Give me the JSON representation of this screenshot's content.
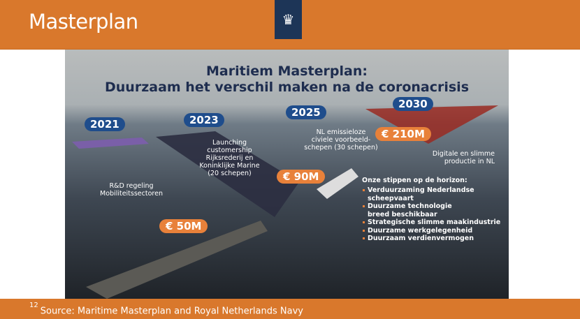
{
  "header": {
    "title": "Masterplan",
    "logo": "rijksoverheid-coat-of-arms"
  },
  "infographic": {
    "title_line1": "Maritiem Masterplan:",
    "title_line2": "Duurzaam het verschil maken na de coronacrisis",
    "years": [
      "2021",
      "2023",
      "2025",
      "2030"
    ],
    "amounts": [
      "€ 50M",
      "€ 90M",
      "€ 210M"
    ],
    "labels": {
      "rd": "R&D regeling Mobiliteitssectoren",
      "launch": [
        "Launching",
        "customership",
        "Rijksrederij en",
        "Koninklijke Marine",
        "(20 schepen)"
      ],
      "nl": [
        "NL emissieloze",
        "civiele voorbeeld-",
        "schepen (30 schepen)"
      ],
      "digital": [
        "Digitale en slimme",
        "productie in NL"
      ]
    },
    "horizon_title": "Onze stippen op de horizon:",
    "horizon_items": [
      "Verduurzaming Nederlandse scheepvaart",
      "Duurzame technologie breed beschikbaar",
      "Strategische slimme maakindustrie",
      "Duurzame werkgelegenheid",
      "Duurzaam verdienvermogen"
    ]
  },
  "footer": {
    "page_number": "12",
    "source": "Source: Maritime Masterplan and Royal Netherlands Navy"
  },
  "colors": {
    "orange": "#d9782c",
    "navy": "#1d3557",
    "year_badge": "#1f4d8c",
    "amount_badge": "#e8813a"
  }
}
